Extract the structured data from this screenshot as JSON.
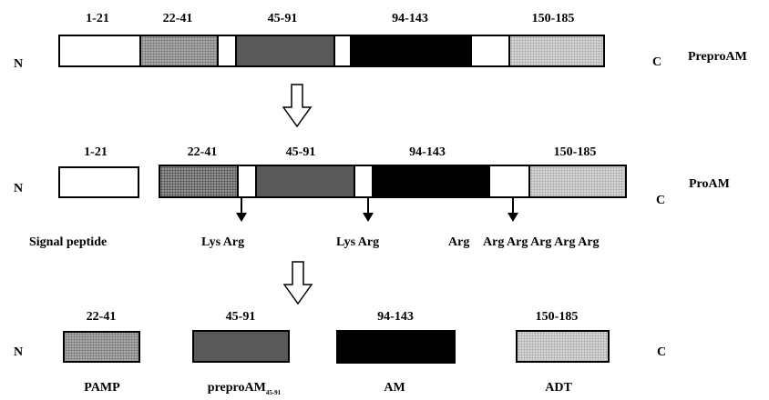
{
  "rows": {
    "prepro": {
      "n": "N",
      "c": "C",
      "name": "PreproAM",
      "ranges": [
        "1-21",
        "22-41",
        "45-91",
        "94-143",
        "150-185"
      ]
    },
    "pro": {
      "n": "N",
      "c": "C",
      "name": "ProAM",
      "ranges": [
        "1-21",
        "22-41",
        "45-91",
        "94-143",
        "150-185"
      ],
      "signal_label": "Signal peptide",
      "cleavage": [
        "Lys Arg",
        "Lys Arg",
        "Arg",
        "Arg Arg Arg Arg Arg"
      ]
    },
    "products": {
      "n": "N",
      "c": "C",
      "ranges": [
        "22-41",
        "45-91",
        "94-143",
        "150-185"
      ],
      "names": [
        "PAMP",
        "preproAM",
        "AM",
        "ADT"
      ],
      "subscript": "45-91"
    }
  }
}
